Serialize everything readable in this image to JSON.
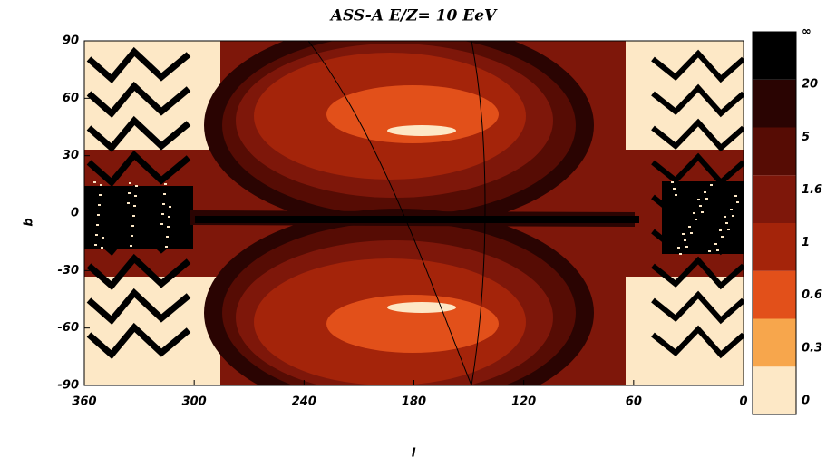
{
  "chart_data": {
    "type": "contour",
    "title": "ASS-A   E/Z= 10 EeV",
    "xlabel": "l",
    "ylabel": "b",
    "xlim": [
      360,
      0
    ],
    "xticks": [
      360,
      300,
      240,
      180,
      120,
      60,
      0
    ],
    "ylim": [
      -90,
      90
    ],
    "yticks": [
      -90,
      -60,
      -30,
      0,
      30,
      60,
      90
    ],
    "colorbar_labels": [
      "0",
      "0.3",
      "0.6",
      "1",
      "1.6",
      "5",
      "20",
      "∞"
    ],
    "colors": [
      "#fde8c6",
      "#f7a64c",
      "#e2501a",
      "#a4240a",
      "#7e170a",
      "#560c04",
      "#2a0402",
      "#000000"
    ]
  }
}
